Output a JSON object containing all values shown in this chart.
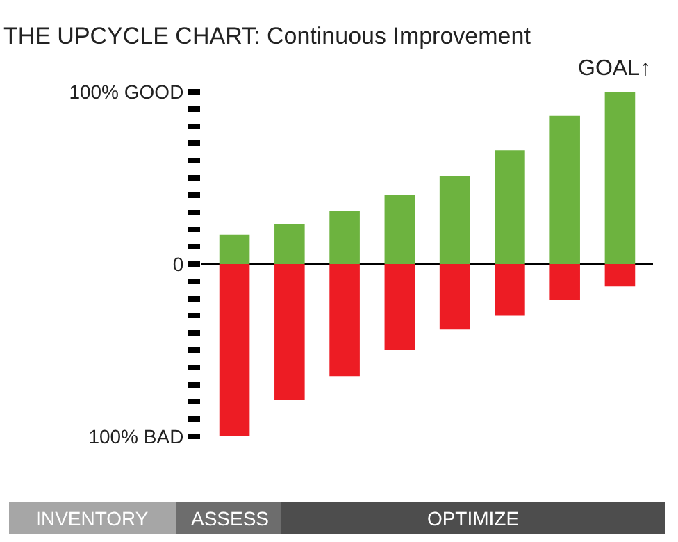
{
  "chart_data": {
    "type": "bar",
    "title": "THE UPCYCLE CHART: Continuous Improvement",
    "categories": [
      null,
      null,
      null,
      null,
      null,
      null,
      null,
      null
    ],
    "stacked": true,
    "series": [
      {
        "color": "#6db33f",
        "values": [
          17,
          23,
          31,
          40,
          51,
          66,
          86,
          100
        ]
      },
      {
        "color": "#ed1c24",
        "values": [
          -100,
          -79,
          -65,
          -50,
          -38,
          -30,
          -21,
          -13
        ]
      }
    ],
    "ylim": [
      -100,
      100
    ],
    "yticks": [
      {
        "value": 100,
        "label": "100% GOOD"
      },
      {
        "value": 90,
        "label": null
      },
      {
        "value": 80,
        "label": null
      },
      {
        "value": 70,
        "label": null
      },
      {
        "value": 60,
        "label": null
      },
      {
        "value": 50,
        "label": null
      },
      {
        "value": 40,
        "label": null
      },
      {
        "value": 30,
        "label": null
      },
      {
        "value": 20,
        "label": null
      },
      {
        "value": 10,
        "label": null
      },
      {
        "value": 0,
        "label": "0"
      },
      {
        "value": -10,
        "label": null
      },
      {
        "value": -20,
        "label": null
      },
      {
        "value": -30,
        "label": null
      },
      {
        "value": -40,
        "label": null
      },
      {
        "value": -50,
        "label": null
      },
      {
        "value": -60,
        "label": null
      },
      {
        "value": -70,
        "label": null
      },
      {
        "value": -80,
        "label": null
      },
      {
        "value": -90,
        "label": null
      },
      {
        "value": -100,
        "label": "100% BAD"
      }
    ],
    "annotations": [
      "GOAL↑",
      "INVENTORY",
      "ASSESS",
      "OPTIMIZE"
    ]
  }
}
